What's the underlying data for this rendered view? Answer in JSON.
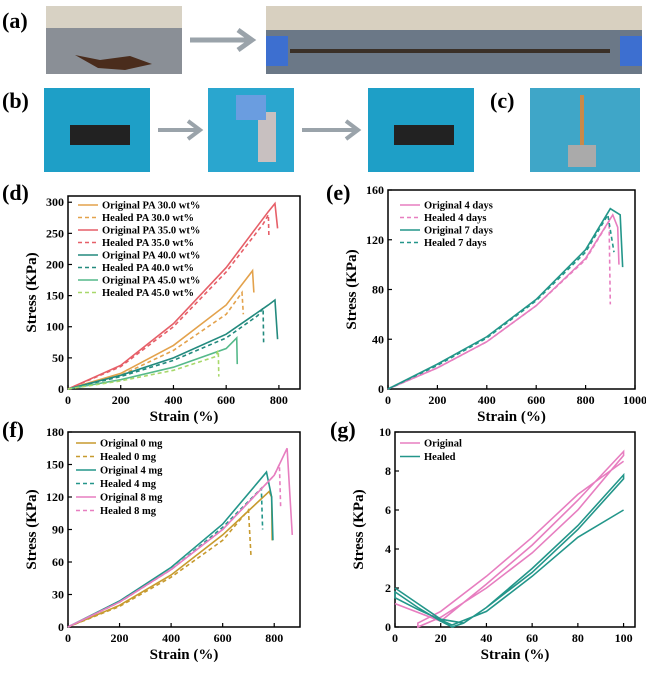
{
  "photos": {
    "labels": [
      "(a)",
      "(b)",
      "(c)"
    ]
  },
  "chart_data": [
    {
      "type": "line",
      "panel": "(d)",
      "xlabel": "Strain (%)",
      "ylabel": "Stress (KPa)",
      "xlim": [
        0,
        880
      ],
      "xticks": [
        0,
        200,
        400,
        600,
        800
      ],
      "ylim": [
        0,
        310
      ],
      "yticks": [
        0,
        50,
        100,
        150,
        200,
        250,
        300
      ],
      "series": [
        {
          "name": "Original PA 30.0 wt%",
          "color": "#e3a24c",
          "dashed": false,
          "x": [
            0,
            200,
            400,
            600,
            700,
            705
          ],
          "values": [
            0,
            25,
            70,
            135,
            190,
            155
          ]
        },
        {
          "name": "Healed PA 30.0 wt%",
          "color": "#e3a24c",
          "dashed": true,
          "x": [
            0,
            200,
            400,
            600,
            660,
            665
          ],
          "values": [
            0,
            22,
            62,
            120,
            155,
            120
          ]
        },
        {
          "name": "Original PA 35.0 wt%",
          "color": "#e65f68",
          "dashed": false,
          "x": [
            0,
            200,
            400,
            600,
            760,
            785,
            795
          ],
          "values": [
            0,
            38,
            105,
            195,
            285,
            298,
            258
          ]
        },
        {
          "name": "Healed PA 35.0 wt%",
          "color": "#e65f68",
          "dashed": true,
          "x": [
            0,
            200,
            400,
            600,
            740,
            760,
            762
          ],
          "values": [
            0,
            36,
            100,
            188,
            265,
            280,
            245
          ]
        },
        {
          "name": "Original PA 40.0 wt%",
          "color": "#238a7e",
          "dashed": false,
          "x": [
            0,
            200,
            400,
            600,
            760,
            785,
            795
          ],
          "values": [
            0,
            22,
            50,
            88,
            135,
            143,
            80
          ]
        },
        {
          "name": "Healed PA 40.0 wt%",
          "color": "#238a7e",
          "dashed": true,
          "x": [
            0,
            200,
            400,
            600,
            720,
            740,
            742
          ],
          "values": [
            0,
            20,
            46,
            82,
            118,
            130,
            75
          ]
        },
        {
          "name": "Original PA 45.0 wt%",
          "color": "#55b98a",
          "dashed": false,
          "x": [
            0,
            200,
            400,
            600,
            640,
            642
          ],
          "values": [
            0,
            15,
            35,
            65,
            82,
            40
          ]
        },
        {
          "name": "Healed PA 45.0 wt%",
          "color": "#a8d86a",
          "dashed": true,
          "x": [
            0,
            200,
            400,
            560,
            570,
            572
          ],
          "values": [
            0,
            13,
            30,
            52,
            62,
            20
          ]
        }
      ]
    },
    {
      "type": "line",
      "panel": "(e)",
      "xlabel": "Strain (%)",
      "ylabel": "Stress (KPa)",
      "xlim": [
        0,
        1000
      ],
      "xticks": [
        0,
        200,
        400,
        600,
        800,
        1000
      ],
      "ylim": [
        0,
        160
      ],
      "yticks": [
        0,
        40,
        80,
        120,
        160
      ],
      "series": [
        {
          "name": "Original 4 days",
          "color": "#e77ec0",
          "dashed": false,
          "x": [
            0,
            200,
            400,
            600,
            800,
            910,
            930,
            935
          ],
          "values": [
            0,
            17,
            38,
            67,
            105,
            140,
            130,
            100
          ]
        },
        {
          "name": "Healed 4 days",
          "color": "#e77ec0",
          "dashed": true,
          "x": [
            0,
            200,
            400,
            600,
            800,
            895,
            900
          ],
          "values": [
            0,
            17,
            38,
            67,
            104,
            135,
            68
          ]
        },
        {
          "name": "Original 7 days",
          "color": "#23968a",
          "dashed": false,
          "x": [
            0,
            200,
            400,
            600,
            800,
            900,
            940,
            950
          ],
          "values": [
            0,
            20,
            42,
            72,
            112,
            145,
            140,
            98
          ]
        },
        {
          "name": "Healed 7 days",
          "color": "#23968a",
          "dashed": true,
          "x": [
            0,
            200,
            400,
            600,
            800,
            890,
            915
          ],
          "values": [
            0,
            19,
            41,
            71,
            110,
            140,
            110
          ]
        }
      ]
    },
    {
      "type": "line",
      "panel": "(f)",
      "xlabel": "Strain (%)",
      "ylabel": "Stress (KPa)",
      "xlim": [
        0,
        900
      ],
      "xticks": [
        0,
        200,
        400,
        600,
        800
      ],
      "ylim": [
        0,
        180
      ],
      "yticks": [
        0,
        30,
        60,
        90,
        120,
        150,
        180
      ],
      "series": [
        {
          "name": "Original 0 mg",
          "color": "#c79a2e",
          "dashed": false,
          "x": [
            0,
            200,
            400,
            600,
            780,
            790,
            792
          ],
          "values": [
            0,
            20,
            48,
            85,
            125,
            120,
            80
          ]
        },
        {
          "name": "Healed 0 mg",
          "color": "#c79a2e",
          "dashed": true,
          "x": [
            0,
            200,
            400,
            600,
            700,
            710
          ],
          "values": [
            0,
            19,
            46,
            80,
            108,
            65
          ]
        },
        {
          "name": "Original 4 mg",
          "color": "#23968a",
          "dashed": false,
          "x": [
            0,
            200,
            400,
            600,
            770,
            790,
            795
          ],
          "values": [
            0,
            24,
            55,
            95,
            143,
            120,
            80
          ]
        },
        {
          "name": "Healed 4 mg",
          "color": "#23968a",
          "dashed": true,
          "x": [
            0,
            200,
            400,
            600,
            750,
            755
          ],
          "values": [
            0,
            23,
            53,
            92,
            128,
            90
          ]
        },
        {
          "name": "Original 8 mg",
          "color": "#e77ec0",
          "dashed": false,
          "x": [
            0,
            200,
            400,
            600,
            800,
            850,
            870
          ],
          "values": [
            0,
            23,
            53,
            90,
            140,
            165,
            85
          ]
        },
        {
          "name": "Healed 8 mg",
          "color": "#e77ec0",
          "dashed": true,
          "x": [
            0,
            200,
            400,
            600,
            800,
            820,
            825
          ],
          "values": [
            0,
            23,
            53,
            90,
            140,
            150,
            110
          ]
        }
      ]
    },
    {
      "type": "line",
      "panel": "(g)",
      "xlabel": "Strain (%)",
      "ylabel": "Stress (KPa)",
      "xlim": [
        0,
        105
      ],
      "xticks": [
        0,
        20,
        40,
        60,
        80,
        100
      ],
      "ylim": [
        0,
        10
      ],
      "yticks": [
        0,
        2,
        4,
        6,
        8,
        10
      ],
      "series": [
        {
          "name": "Original",
          "color": "#e77ec0",
          "dashed": false,
          "x": [
            0,
            20,
            40,
            60,
            80,
            100,
            100,
            80,
            60,
            40,
            20,
            10,
            10,
            20,
            40,
            60,
            80,
            100
          ],
          "values": [
            1.2,
            0.3,
            2.2,
            4.2,
            6.5,
            9.0,
            8.8,
            6.0,
            3.8,
            2.0,
            0.5,
            0,
            0.2,
            0.8,
            2.6,
            4.6,
            6.8,
            8.5
          ]
        },
        {
          "name": "Healed",
          "color": "#23968a",
          "dashed": false,
          "x": [
            0,
            10,
            20,
            30,
            40,
            60,
            80,
            100,
            100,
            80,
            60,
            40,
            30,
            25,
            20,
            10,
            0,
            0,
            10,
            25,
            40,
            60,
            80,
            100
          ],
          "values": [
            2.0,
            1.2,
            0.4,
            0.2,
            1.0,
            3.0,
            5.2,
            7.8,
            7.6,
            5.0,
            2.8,
            1.0,
            0.2,
            0,
            0.3,
            1.0,
            1.8,
            1.5,
            0.9,
            0.1,
            0.8,
            2.6,
            4.6,
            6.0
          ]
        }
      ]
    }
  ]
}
